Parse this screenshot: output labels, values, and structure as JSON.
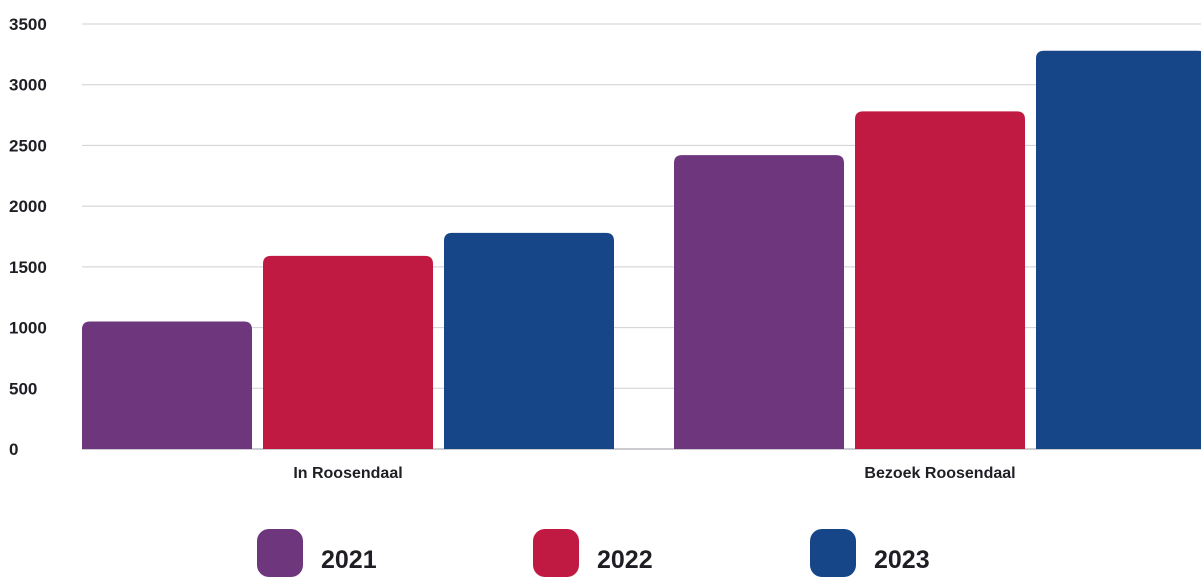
{
  "chart_data": {
    "type": "bar",
    "title": "",
    "xlabel": "",
    "ylabel": "",
    "categories": [
      "In Roosendaal",
      "Bezoek Roosendaal"
    ],
    "series": [
      {
        "name": "2021",
        "color": "#6e367c",
        "values": [
          1050,
          2420
        ]
      },
      {
        "name": "2022",
        "color": "#c01a43",
        "values": [
          1590,
          2780
        ]
      },
      {
        "name": "2023",
        "color": "#174688",
        "values": [
          1780,
          3280
        ]
      }
    ],
    "ylim": [
      0,
      3500
    ],
    "yticks": [
      "0",
      "500",
      "1000",
      "1500",
      "2000",
      "2500",
      "3000",
      "3500"
    ],
    "grid": true,
    "legend_position": "bottom"
  }
}
